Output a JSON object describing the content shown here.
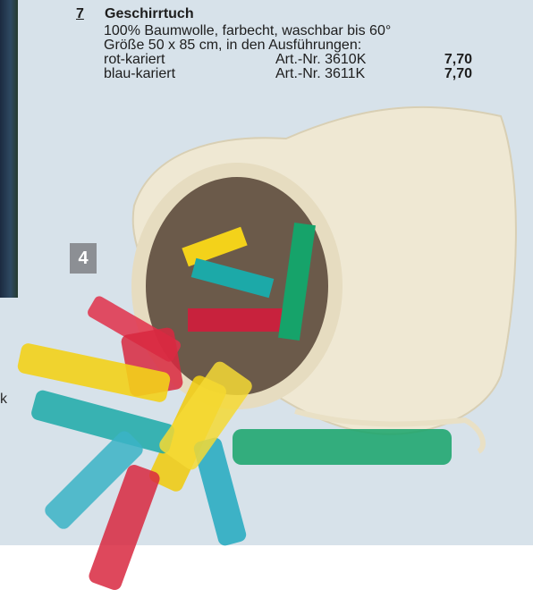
{
  "product": {
    "number": "7",
    "title": "Geschirrtuch",
    "description_line1": "100% Baumwolle, farbecht, waschbar bis 60°",
    "description_line2": "Größe 50 x 85 cm, in den Ausführungen:",
    "variants": [
      {
        "name": "rot-kariert",
        "article": "Art.-Nr. 3610K",
        "price": "7,70"
      },
      {
        "name": "blau-kariert",
        "article": "Art.-Nr. 3611K",
        "price": "7,70"
      }
    ]
  },
  "badge": {
    "label": "4"
  },
  "margin_text": {
    "stray": "k"
  },
  "colors": {
    "background": "#d7e2ea",
    "bag": "#efe8d3",
    "clip_red": "#e0304a",
    "clip_yellow": "#f3d21a",
    "clip_teal": "#1ca9a8",
    "clip_green": "#16a36a",
    "badge": "#8c8f94"
  }
}
